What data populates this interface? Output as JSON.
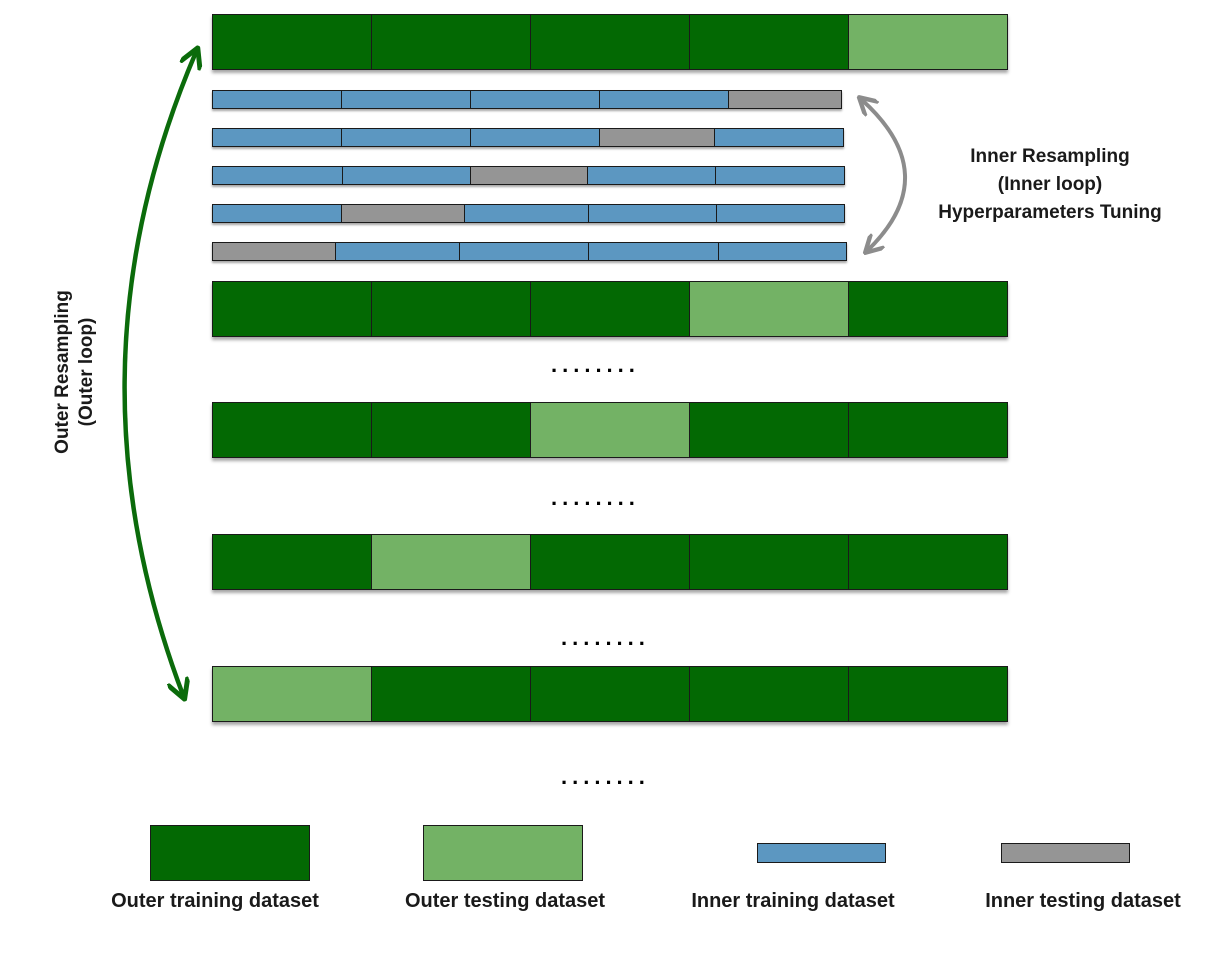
{
  "colors": {
    "outer_training": "#036903",
    "outer_testing": "#73b265",
    "inner_training": "#5c97c1",
    "inner_testing": "#959595",
    "outer_arrow": "#0b6b0b",
    "inner_arrow": "#8c8c8c"
  },
  "outer_resampling_label": [
    "Outer Resampling",
    "(Outer loop)"
  ],
  "inner_resampling_label": [
    "Inner Resampling",
    "(Inner loop)",
    "Hyperparameters Tuning"
  ],
  "ellipsis": "........",
  "outer_folds": [
    {
      "test_index": 4
    },
    {
      "test_index": 3
    },
    {
      "test_index": 2
    },
    {
      "test_index": 1
    },
    {
      "test_index": 0
    }
  ],
  "inner_folds": [
    {
      "test_index": 4
    },
    {
      "test_index": 3
    },
    {
      "test_index": 2
    },
    {
      "test_index": 1
    },
    {
      "test_index": 0
    }
  ],
  "legend": [
    {
      "key": "outer_training",
      "label": "Outer training dataset"
    },
    {
      "key": "outer_testing",
      "label": "Outer testing dataset"
    },
    {
      "key": "inner_training",
      "label": "Inner training dataset"
    },
    {
      "key": "inner_testing",
      "label": "Inner testing dataset"
    }
  ]
}
